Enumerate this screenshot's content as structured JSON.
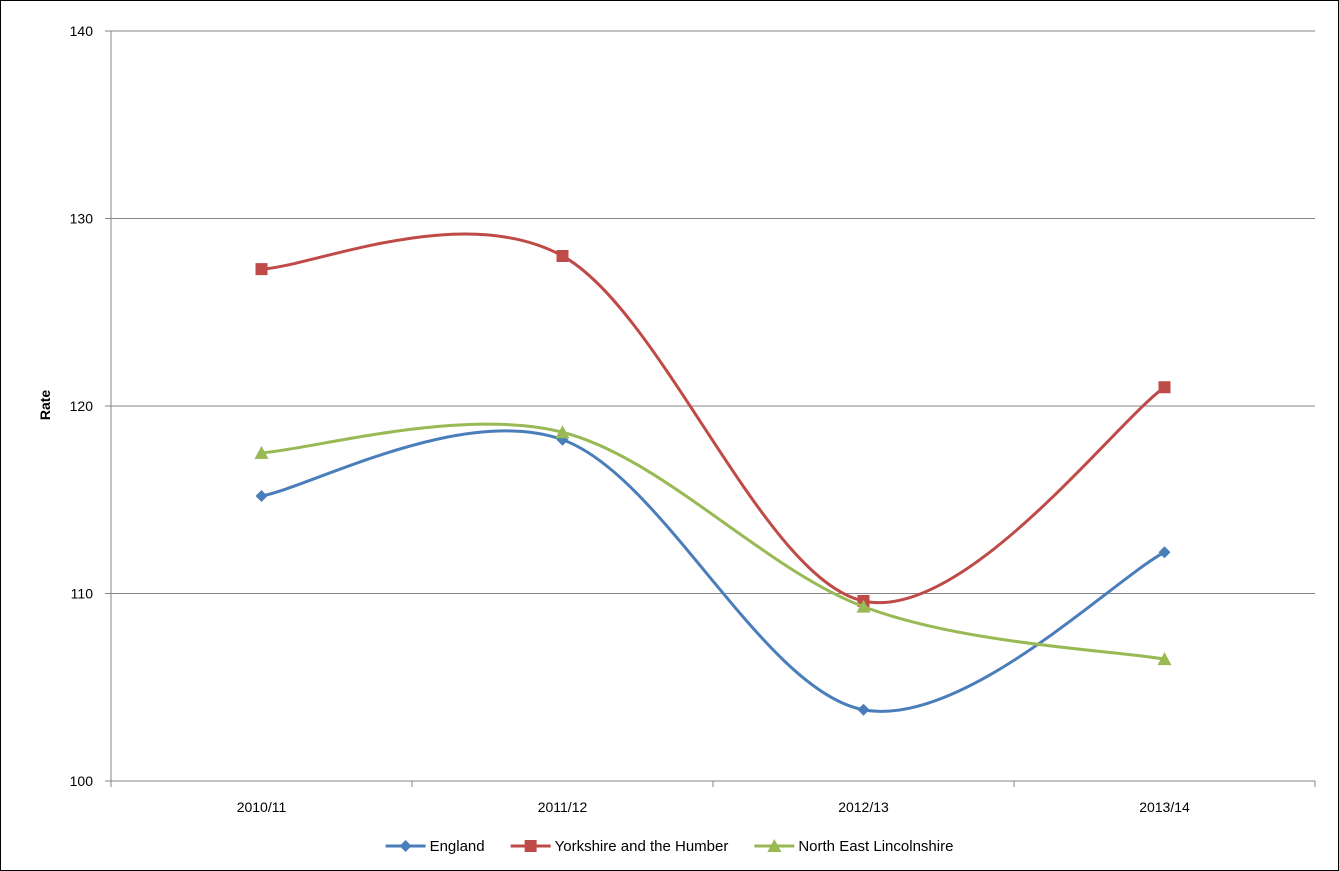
{
  "chart_data": {
    "type": "line",
    "title": "",
    "xlabel": "",
    "ylabel": "Rate",
    "categories": [
      "2010/11",
      "2011/12",
      "2012/13",
      "2013/14"
    ],
    "ylim": [
      100,
      140
    ],
    "yticks": [
      "100",
      "110",
      "120",
      "130",
      "140"
    ],
    "grid": true,
    "smooth": true,
    "legend_position": "bottom",
    "series": [
      {
        "name": "England",
        "color": "#4a7ebb",
        "marker": "diamond",
        "values": [
          115.2,
          118.2,
          103.8,
          112.2
        ]
      },
      {
        "name": "Yorkshire and the Humber",
        "color": "#be4b48",
        "marker": "square",
        "values": [
          127.3,
          128.0,
          109.6,
          121.0
        ]
      },
      {
        "name": "North East Lincolnshire",
        "color": "#98b954",
        "marker": "triangle",
        "values": [
          117.5,
          118.6,
          109.3,
          106.5
        ]
      }
    ]
  }
}
